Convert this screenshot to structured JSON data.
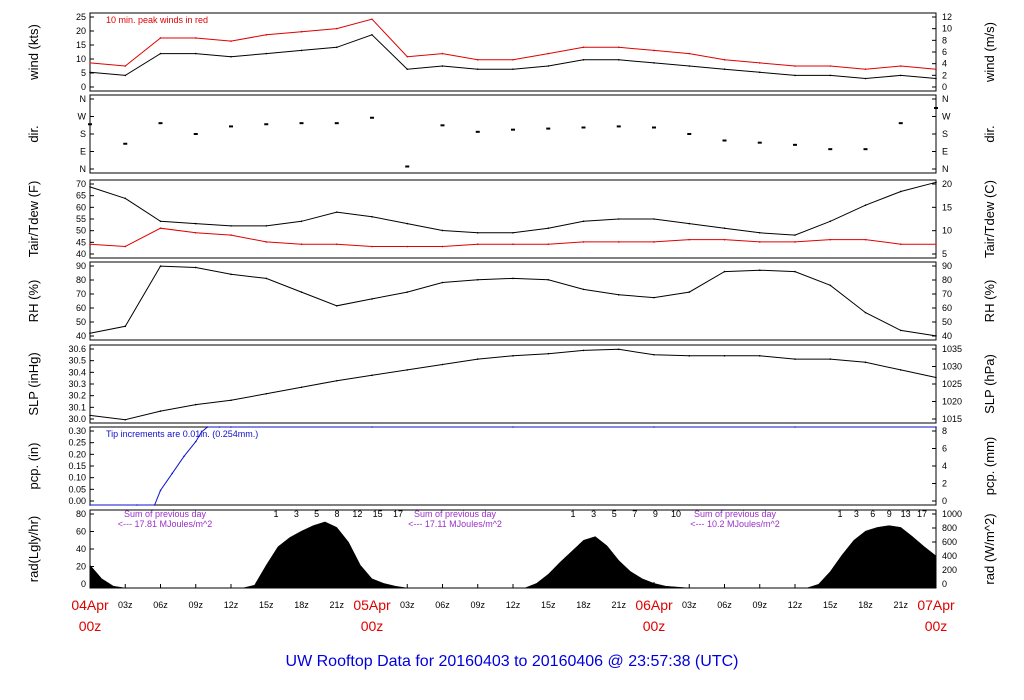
{
  "title": "UW Rooftop Data for 20160403  to  20160406 @ 23:57:38  (UTC)",
  "colors": {
    "black": "#000000",
    "red": "#e00000",
    "blue": "#1010cc",
    "purple": "#9b30c8",
    "title": "#0000dd"
  },
  "x_axis": {
    "hour_ticks": [
      "03z",
      "06z",
      "09z",
      "12z",
      "15z",
      "18z",
      "21z",
      "03z",
      "06z",
      "09z",
      "12z",
      "15z",
      "18z",
      "21z",
      "03z",
      "06z",
      "09z",
      "12z",
      "15z",
      "18z",
      "21z"
    ],
    "day_labels": [
      {
        "date": "04Apr",
        "hour": "00z"
      },
      {
        "date": "05Apr",
        "hour": "00z"
      },
      {
        "date": "06Apr",
        "hour": "00z"
      },
      {
        "date": "07Apr",
        "hour": "00z"
      }
    ]
  },
  "chart_data": [
    {
      "type": "line",
      "panel": "wind",
      "ylabel_left": "wind (kts)",
      "ylabel_right": "wind (m/s)",
      "left_ticks": [
        "0",
        "5",
        "10",
        "15",
        "20",
        "25"
      ],
      "right_ticks": [
        "0",
        "2",
        "4",
        "6",
        "8",
        "10",
        "12"
      ],
      "ylim": [
        0,
        25
      ],
      "annotation": "10 min. peak winds in red",
      "x_hours": [
        0,
        3,
        6,
        9,
        12,
        15,
        18,
        21,
        24,
        27,
        30,
        33,
        36,
        39,
        42,
        45,
        48,
        51,
        54,
        57,
        60,
        63,
        66,
        69,
        72
      ],
      "series": [
        {
          "color": "black",
          "values": [
            6,
            5,
            12,
            12,
            11,
            12,
            13,
            14,
            18,
            7,
            8,
            7,
            7,
            8,
            10,
            10,
            9,
            8,
            7,
            6,
            5,
            5,
            4,
            5,
            4
          ]
        },
        {
          "color": "red",
          "values": [
            9,
            8,
            17,
            17,
            16,
            18,
            19,
            20,
            23,
            11,
            12,
            10,
            10,
            12,
            14,
            14,
            13,
            12,
            10,
            9,
            8,
            8,
            7,
            8,
            7
          ]
        }
      ]
    },
    {
      "type": "scatter",
      "panel": "dir",
      "ylabel_left": "dir.",
      "ylabel_right": "dir.",
      "left_ticks": [
        "N",
        "E",
        "S",
        "W",
        "N"
      ],
      "right_ticks": [
        "N",
        "E",
        "S",
        "W",
        "N"
      ],
      "ylim": [
        0,
        360
      ],
      "x_hours": [
        0,
        3,
        6,
        9,
        12,
        15,
        18,
        21,
        24,
        27,
        30,
        33,
        36,
        39,
        42,
        45,
        48,
        51,
        54,
        57,
        60,
        63,
        66,
        69,
        72
      ],
      "values": [
        225,
        135,
        230,
        180,
        215,
        225,
        230,
        230,
        255,
        30,
        220,
        190,
        200,
        205,
        210,
        215,
        210,
        180,
        150,
        140,
        130,
        110,
        110,
        230,
        300
      ]
    },
    {
      "type": "line",
      "panel": "temperature",
      "ylabel_left": "Tair/Tdew (F)",
      "ylabel_right": "Tair/Tdew (C)",
      "left_ticks": [
        "40",
        "45",
        "50",
        "55",
        "60",
        "65",
        "70"
      ],
      "right_ticks": [
        "5",
        "10",
        "15",
        "20"
      ],
      "ylim": [
        37,
        71
      ],
      "x_hours": [
        0,
        3,
        6,
        9,
        12,
        15,
        18,
        21,
        24,
        27,
        30,
        33,
        36,
        39,
        42,
        45,
        48,
        51,
        54,
        57,
        60,
        63,
        66,
        69,
        72
      ],
      "series": [
        {
          "name": "Tair",
          "color": "black",
          "values": [
            68,
            63,
            53,
            52,
            51,
            51,
            53,
            57,
            55,
            52,
            49,
            48,
            48,
            50,
            53,
            54,
            54,
            52,
            50,
            48,
            47,
            53,
            60,
            66,
            70
          ]
        },
        {
          "name": "Tdew",
          "color": "red",
          "values": [
            43,
            42,
            50,
            48,
            47,
            44,
            43,
            43,
            42,
            42,
            42,
            43,
            43,
            43,
            44,
            44,
            44,
            45,
            45,
            44,
            44,
            45,
            45,
            43,
            43
          ]
        }
      ]
    },
    {
      "type": "line",
      "panel": "rh",
      "ylabel_left": "RH (%)",
      "ylabel_right": "RH (%)",
      "left_ticks": [
        "40",
        "50",
        "60",
        "70",
        "80",
        "90"
      ],
      "right_ticks": [
        "40",
        "50",
        "60",
        "70",
        "80",
        "90"
      ],
      "ylim": [
        35,
        92
      ],
      "x_hours": [
        0,
        3,
        6,
        9,
        12,
        15,
        18,
        21,
        24,
        27,
        30,
        33,
        36,
        39,
        42,
        45,
        48,
        51,
        54,
        57,
        60,
        63,
        66,
        69,
        72
      ],
      "values": [
        40,
        45,
        89,
        88,
        83,
        80,
        70,
        60,
        65,
        70,
        77,
        79,
        80,
        79,
        72,
        68,
        66,
        70,
        85,
        86,
        85,
        75,
        55,
        42,
        38
      ]
    },
    {
      "type": "line",
      "panel": "slp",
      "ylabel_left": "SLP (inHg)",
      "ylabel_right": "SLP (hPa)",
      "left_ticks": [
        "30.0",
        "30.1",
        "30.2",
        "30.3",
        "30.4",
        "30.5",
        "30.6"
      ],
      "right_ticks": [
        "1015",
        "1020",
        "1025",
        "1030",
        "1035"
      ],
      "ylim": [
        29.93,
        30.65
      ],
      "x_hours": [
        0,
        3,
        6,
        9,
        12,
        15,
        18,
        21,
        24,
        27,
        30,
        33,
        36,
        39,
        42,
        45,
        48,
        51,
        54,
        57,
        60,
        63,
        66,
        69,
        72
      ],
      "values": [
        30.0,
        29.96,
        30.04,
        30.1,
        30.14,
        30.2,
        30.26,
        30.32,
        30.37,
        30.42,
        30.47,
        30.52,
        30.55,
        30.57,
        30.6,
        30.61,
        30.56,
        30.55,
        30.55,
        30.55,
        30.52,
        30.52,
        30.49,
        30.42,
        30.35
      ]
    },
    {
      "type": "line",
      "panel": "pcp",
      "ylabel_left": "pcp. (in)",
      "ylabel_right": "pcp. (mm)",
      "left_ticks": [
        "0.00",
        "0.05",
        "0.10",
        "0.15",
        "0.20",
        "0.25",
        "0.30"
      ],
      "right_ticks": [
        "0",
        "2",
        "4",
        "6",
        "8"
      ],
      "ylim": [
        0,
        0.32
      ],
      "annotation": "Tip increments are 0.01in. (0.254mm.)",
      "x_hours": [
        0,
        4,
        5.5,
        6,
        7,
        8,
        9,
        9.5,
        10,
        11,
        12,
        24,
        36,
        48,
        60,
        72
      ],
      "values": [
        0,
        0,
        0,
        0.06,
        0.13,
        0.2,
        0.26,
        0.3,
        0.32,
        0.32,
        0.32,
        0.32,
        0.32,
        0.32,
        0.32,
        0.32
      ]
    },
    {
      "type": "area",
      "panel": "radiation",
      "ylabel_left": "rad(Lgly/hr)",
      "ylabel_right": "rad (W/m^2)",
      "left_ticks": [
        "0",
        "20",
        "40",
        "60",
        "80"
      ],
      "right_ticks": [
        "0",
        "200",
        "400",
        "600",
        "800",
        "1000"
      ],
      "ylim": [
        0,
        85
      ],
      "daily_sums": [
        {
          "header": "Sum of previous day",
          "value": "<--- 17.81 MJoules/m^2"
        },
        {
          "header": "Sum of previous day",
          "value": "<--- 17.11 MJoules/m^2"
        },
        {
          "header": "Sum of previous day",
          "value": "<--- 10.2 MJoules/m^2"
        }
      ],
      "local_hour_groups": [
        [
          "1",
          "3",
          "5",
          "8",
          "12",
          "15",
          "17"
        ],
        [
          "1",
          "3",
          "5",
          "7",
          "9",
          "10"
        ],
        [
          "1",
          "3",
          "6",
          "9",
          "13",
          "17"
        ]
      ],
      "x_hours": [
        0,
        1,
        2,
        3,
        13,
        14,
        15,
        16,
        17,
        18,
        19,
        20,
        21,
        22,
        23,
        24,
        25,
        26,
        27,
        37,
        38,
        39,
        40,
        41,
        42,
        43,
        44,
        45,
        46,
        47,
        48,
        49,
        50,
        51,
        61,
        62,
        63,
        64,
        65,
        66,
        67,
        68,
        69,
        70,
        71,
        72
      ],
      "values": [
        25,
        10,
        2,
        0,
        0,
        3,
        25,
        45,
        55,
        62,
        68,
        72,
        66,
        50,
        25,
        10,
        5,
        2,
        0,
        0,
        5,
        15,
        28,
        40,
        52,
        56,
        46,
        30,
        18,
        10,
        5,
        2,
        1,
        0,
        0,
        4,
        18,
        36,
        52,
        62,
        66,
        68,
        66,
        56,
        45,
        35
      ]
    }
  ]
}
